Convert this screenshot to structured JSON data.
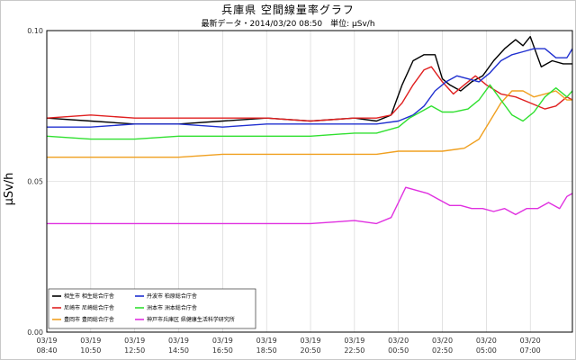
{
  "chart_data": {
    "type": "line",
    "title": "兵庫県 空間線量率グラフ",
    "subtitle": "最新データ・2014/03/20 08:50　単位: μSv/h",
    "ylabel": "μSv/h",
    "ylim": [
      0.0,
      0.1
    ],
    "yticks": [
      "0.00",
      "0.05",
      "0.10"
    ],
    "xlim": [
      0,
      287
    ],
    "grid": true,
    "legend_position": "bottom-left",
    "xtick_positions": [
      0,
      24,
      48,
      72,
      96,
      120,
      144,
      168,
      192,
      216,
      240,
      264
    ],
    "xtick_labels": [
      [
        "03/19",
        "08:40"
      ],
      [
        "03/19",
        "10:50"
      ],
      [
        "03/19",
        "12:50"
      ],
      [
        "03/19",
        "14:50"
      ],
      [
        "03/19",
        "16:50"
      ],
      [
        "03/19",
        "18:50"
      ],
      [
        "03/19",
        "20:50"
      ],
      [
        "03/19",
        "22:50"
      ],
      [
        "03/20",
        "00:50"
      ],
      [
        "03/20",
        "02:50"
      ],
      [
        "03/20",
        "05:00"
      ],
      [
        "03/20",
        "07:00"
      ]
    ],
    "series": [
      {
        "name": "相生市 相生総合庁舎",
        "color": "#000000",
        "points": [
          [
            0,
            0.071
          ],
          [
            24,
            0.07
          ],
          [
            48,
            0.069
          ],
          [
            72,
            0.069
          ],
          [
            96,
            0.07
          ],
          [
            120,
            0.071
          ],
          [
            144,
            0.07
          ],
          [
            168,
            0.071
          ],
          [
            180,
            0.07
          ],
          [
            188,
            0.072
          ],
          [
            194,
            0.082
          ],
          [
            200,
            0.09
          ],
          [
            206,
            0.092
          ],
          [
            212,
            0.092
          ],
          [
            216,
            0.084
          ],
          [
            220,
            0.082
          ],
          [
            226,
            0.08
          ],
          [
            232,
            0.083
          ],
          [
            238,
            0.085
          ],
          [
            244,
            0.09
          ],
          [
            250,
            0.094
          ],
          [
            256,
            0.097
          ],
          [
            260,
            0.095
          ],
          [
            264,
            0.098
          ],
          [
            270,
            0.088
          ],
          [
            276,
            0.09
          ],
          [
            282,
            0.089
          ],
          [
            287,
            0.089
          ]
        ]
      },
      {
        "name": "尼崎市 尼崎総合庁舎",
        "color": "#e02020",
        "points": [
          [
            0,
            0.071
          ],
          [
            24,
            0.072
          ],
          [
            48,
            0.071
          ],
          [
            72,
            0.071
          ],
          [
            96,
            0.071
          ],
          [
            120,
            0.071
          ],
          [
            144,
            0.07
          ],
          [
            168,
            0.071
          ],
          [
            180,
            0.071
          ],
          [
            188,
            0.072
          ],
          [
            194,
            0.076
          ],
          [
            200,
            0.082
          ],
          [
            206,
            0.087
          ],
          [
            210,
            0.088
          ],
          [
            216,
            0.083
          ],
          [
            222,
            0.079
          ],
          [
            228,
            0.082
          ],
          [
            234,
            0.085
          ],
          [
            240,
            0.082
          ],
          [
            248,
            0.079
          ],
          [
            256,
            0.078
          ],
          [
            264,
            0.076
          ],
          [
            272,
            0.074
          ],
          [
            278,
            0.075
          ],
          [
            284,
            0.078
          ],
          [
            287,
            0.077
          ]
        ]
      },
      {
        "name": "豊岡市 豊岡総合庁舎",
        "color": "#f0a020",
        "points": [
          [
            0,
            0.058
          ],
          [
            24,
            0.058
          ],
          [
            48,
            0.058
          ],
          [
            72,
            0.058
          ],
          [
            96,
            0.059
          ],
          [
            120,
            0.059
          ],
          [
            144,
            0.059
          ],
          [
            168,
            0.059
          ],
          [
            180,
            0.059
          ],
          [
            192,
            0.06
          ],
          [
            204,
            0.06
          ],
          [
            216,
            0.06
          ],
          [
            228,
            0.061
          ],
          [
            236,
            0.064
          ],
          [
            242,
            0.07
          ],
          [
            248,
            0.076
          ],
          [
            254,
            0.08
          ],
          [
            260,
            0.08
          ],
          [
            266,
            0.078
          ],
          [
            272,
            0.079
          ],
          [
            278,
            0.08
          ],
          [
            284,
            0.077
          ],
          [
            287,
            0.077
          ]
        ]
      },
      {
        "name": "丹波市 柏原総合庁舎",
        "color": "#2030d0",
        "points": [
          [
            0,
            0.068
          ],
          [
            24,
            0.068
          ],
          [
            48,
            0.069
          ],
          [
            72,
            0.069
          ],
          [
            96,
            0.068
          ],
          [
            120,
            0.069
          ],
          [
            144,
            0.069
          ],
          [
            168,
            0.069
          ],
          [
            180,
            0.069
          ],
          [
            192,
            0.07
          ],
          [
            200,
            0.072
          ],
          [
            206,
            0.075
          ],
          [
            212,
            0.08
          ],
          [
            218,
            0.083
          ],
          [
            224,
            0.085
          ],
          [
            230,
            0.084
          ],
          [
            236,
            0.083
          ],
          [
            242,
            0.086
          ],
          [
            248,
            0.09
          ],
          [
            254,
            0.092
          ],
          [
            260,
            0.093
          ],
          [
            266,
            0.094
          ],
          [
            272,
            0.094
          ],
          [
            278,
            0.091
          ],
          [
            284,
            0.091
          ],
          [
            287,
            0.094
          ]
        ]
      },
      {
        "name": "洲本市 洲本総合庁舎",
        "color": "#30e030",
        "points": [
          [
            0,
            0.065
          ],
          [
            24,
            0.064
          ],
          [
            48,
            0.064
          ],
          [
            72,
            0.065
          ],
          [
            96,
            0.065
          ],
          [
            120,
            0.065
          ],
          [
            144,
            0.065
          ],
          [
            168,
            0.066
          ],
          [
            180,
            0.066
          ],
          [
            192,
            0.068
          ],
          [
            198,
            0.071
          ],
          [
            204,
            0.073
          ],
          [
            210,
            0.075
          ],
          [
            216,
            0.073
          ],
          [
            222,
            0.073
          ],
          [
            230,
            0.074
          ],
          [
            236,
            0.077
          ],
          [
            242,
            0.082
          ],
          [
            248,
            0.077
          ],
          [
            254,
            0.072
          ],
          [
            260,
            0.07
          ],
          [
            266,
            0.073
          ],
          [
            272,
            0.078
          ],
          [
            278,
            0.081
          ],
          [
            284,
            0.078
          ],
          [
            287,
            0.08
          ]
        ]
      },
      {
        "name": "神戸市兵庫区 県健康生活科学研究所",
        "color": "#e030e0",
        "points": [
          [
            0,
            0.036
          ],
          [
            24,
            0.036
          ],
          [
            48,
            0.036
          ],
          [
            72,
            0.036
          ],
          [
            96,
            0.036
          ],
          [
            120,
            0.036
          ],
          [
            144,
            0.036
          ],
          [
            168,
            0.037
          ],
          [
            180,
            0.036
          ],
          [
            188,
            0.038
          ],
          [
            192,
            0.043
          ],
          [
            196,
            0.048
          ],
          [
            202,
            0.047
          ],
          [
            208,
            0.046
          ],
          [
            214,
            0.044
          ],
          [
            220,
            0.042
          ],
          [
            226,
            0.042
          ],
          [
            232,
            0.041
          ],
          [
            238,
            0.041
          ],
          [
            244,
            0.04
          ],
          [
            250,
            0.041
          ],
          [
            256,
            0.039
          ],
          [
            262,
            0.041
          ],
          [
            268,
            0.041
          ],
          [
            274,
            0.043
          ],
          [
            280,
            0.041
          ],
          [
            284,
            0.045
          ],
          [
            287,
            0.046
          ]
        ]
      }
    ]
  }
}
